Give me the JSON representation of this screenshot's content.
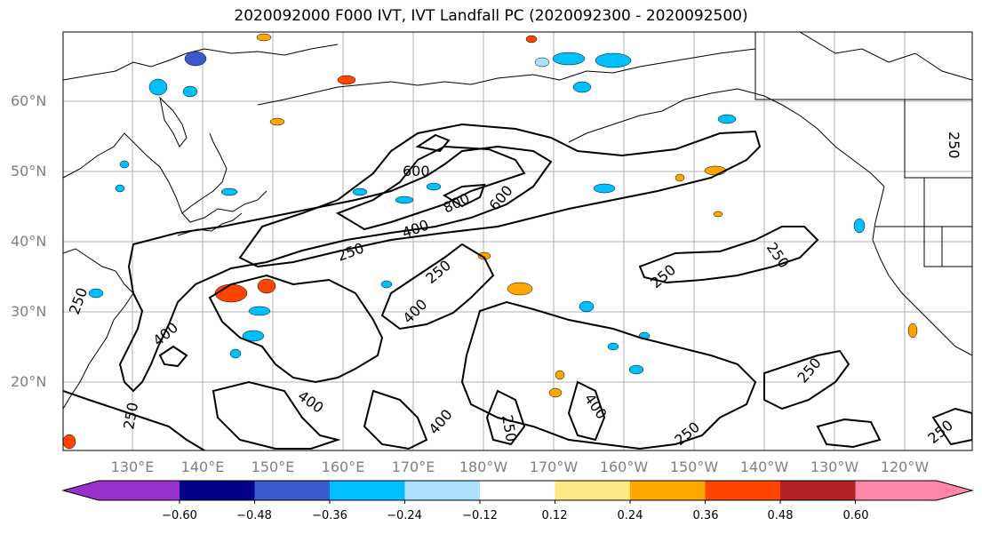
{
  "title": "2020092000 F000 IVT, IVT Landfall PC (2020092300 - 2020092500)",
  "lat_labels": [
    "60°N",
    "50°N",
    "40°N",
    "30°N",
    "20°N"
  ],
  "lon_labels": [
    "130°E",
    "140°E",
    "150°E",
    "160°E",
    "170°E",
    "180°W",
    "170°W",
    "160°W",
    "150°W",
    "140°W",
    "130°W",
    "120°W"
  ],
  "contour_labels": [
    "600",
    "800",
    "600",
    "400",
    "250",
    "250",
    "250",
    "250",
    "400",
    "400",
    "400",
    "250",
    "400",
    "250",
    "250",
    "400",
    "250",
    "250",
    "250",
    "250"
  ],
  "colorbar": {
    "ticks": [
      "−0.60",
      "−0.48",
      "−0.36",
      "−0.24",
      "−0.12",
      "0.12",
      "0.24",
      "0.36",
      "0.48",
      "0.60"
    ],
    "colors": [
      "#9932CC",
      "#00008B",
      "#3A5BCC",
      "#00BFFF",
      "#ADDFFF",
      "#FFFFFF",
      "#FFE985",
      "#FFA500",
      "#FF4500",
      "#B22222",
      "#FF85A9"
    ]
  }
}
